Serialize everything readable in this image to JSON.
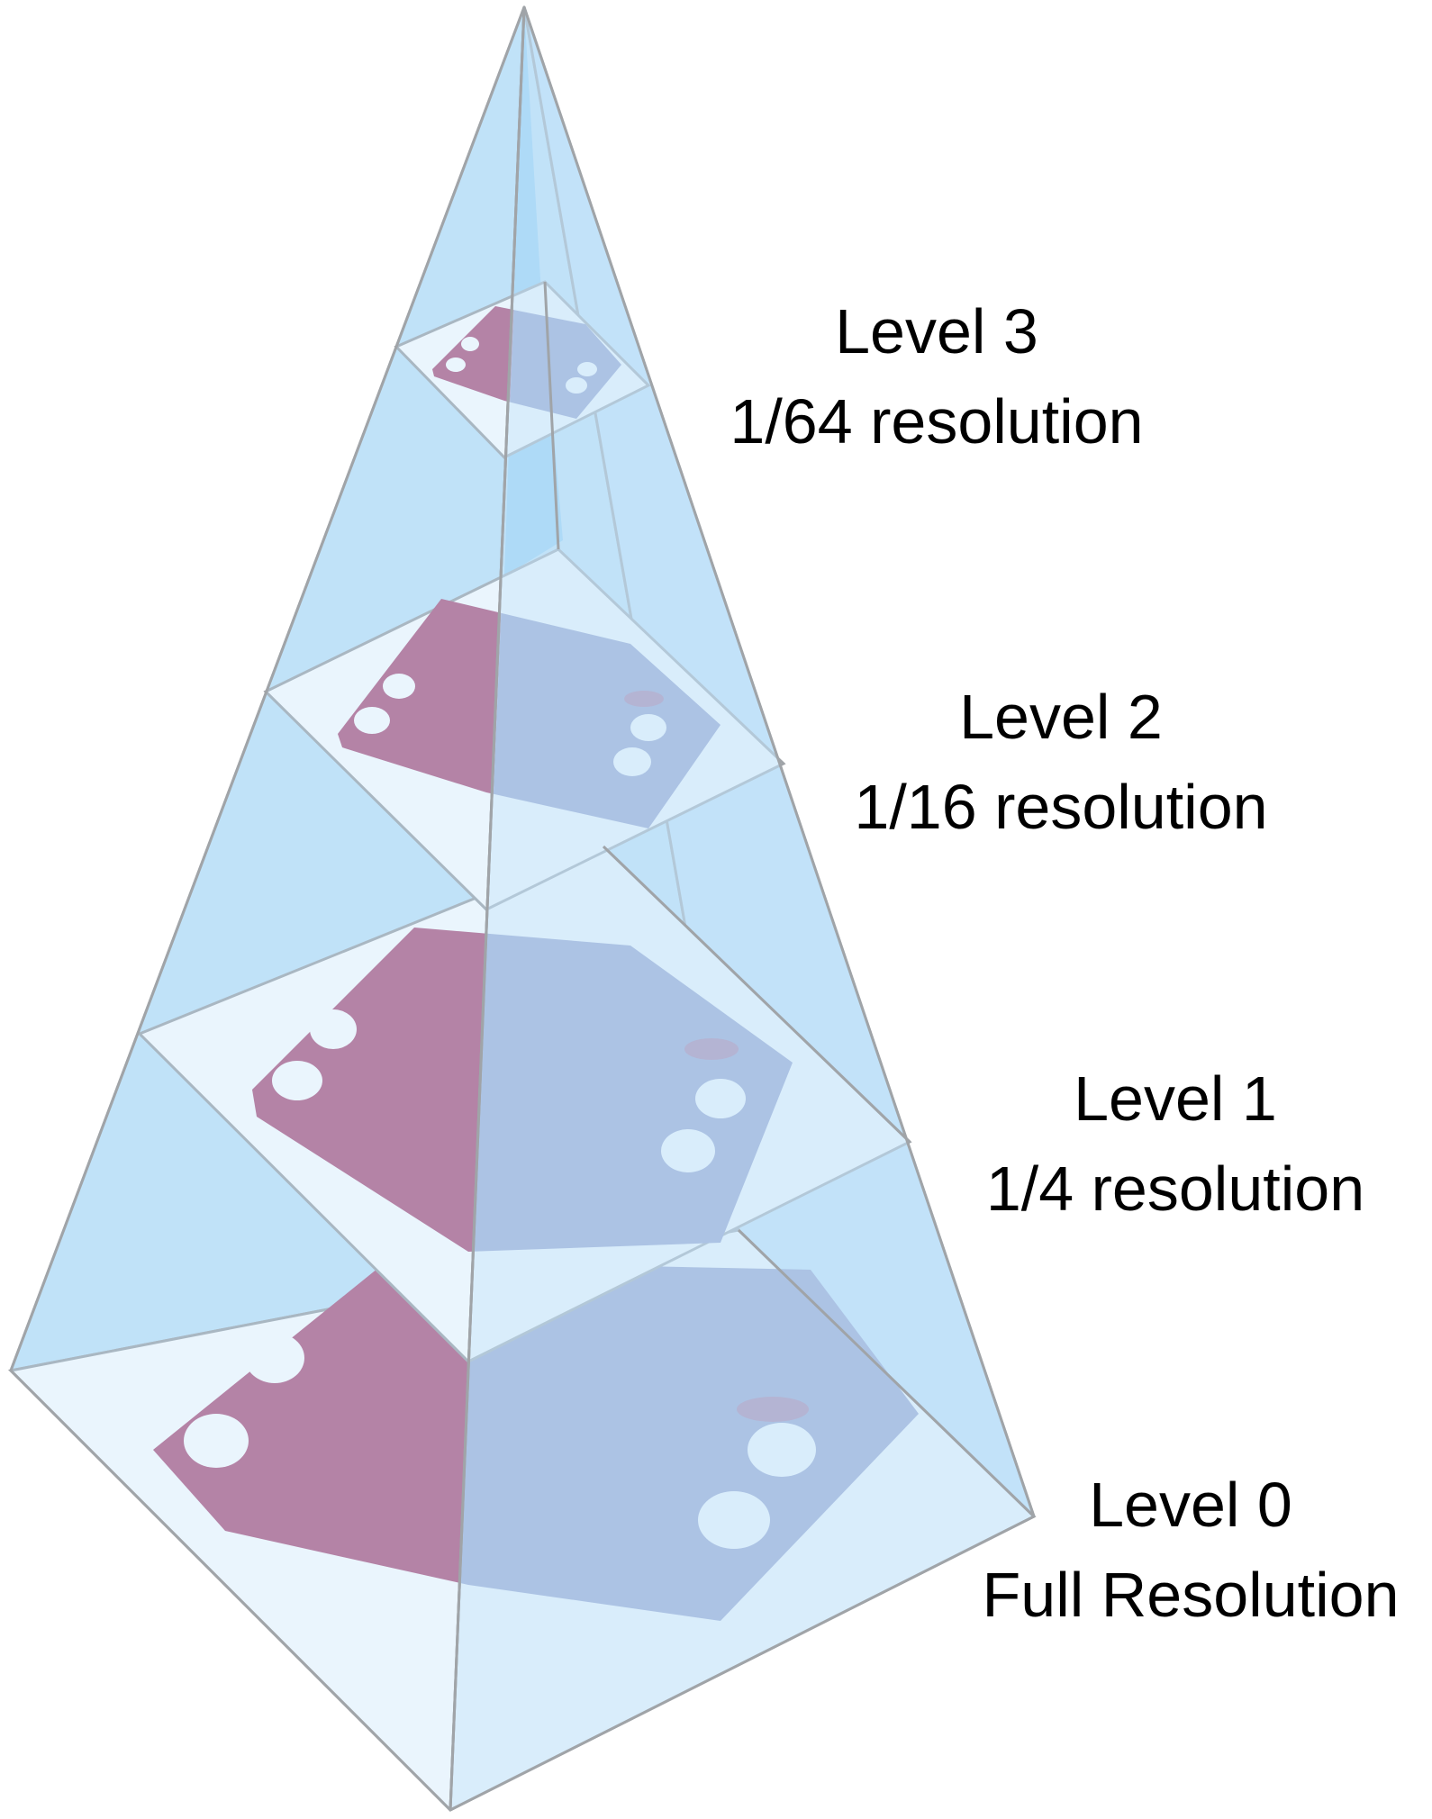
{
  "levels": [
    {
      "name": "Level 3",
      "resolution": "1/64 resolution"
    },
    {
      "name": "Level 2",
      "resolution": "1/16 resolution"
    },
    {
      "name": "Level 1",
      "resolution": "1/4 resolution"
    },
    {
      "name": "Level 0",
      "resolution": "Full Resolution"
    }
  ],
  "colors": {
    "pyramid_face": "#bfe1f8",
    "pyramid_face_dark": "#8ecdf4",
    "edge": "#a0a4a8",
    "tissue_pink": "#b0577f",
    "tissue_blue": "#8f97c6",
    "hole": "#ffffff"
  }
}
